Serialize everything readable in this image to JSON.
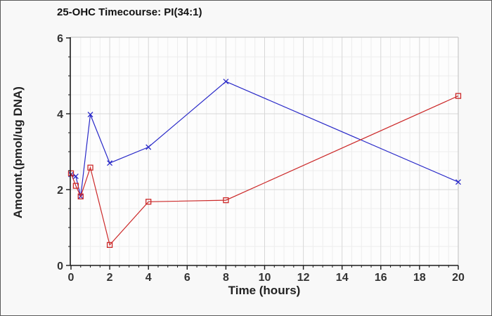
{
  "window": {
    "background": "#f8f8f8",
    "border_color": "#5a5a5a",
    "plot_background": "#fdfdfd"
  },
  "chart_data": {
    "type": "line",
    "title": "25-OHC Timecourse: PI(34:1)",
    "xlabel": "Time (hours)",
    "ylabel": "Amount.(pmol/ug DNA)",
    "xlim": [
      0,
      20.4
    ],
    "ylim": [
      0,
      6
    ],
    "x_ticks": [
      0,
      2,
      4,
      6,
      8,
      10,
      12,
      14,
      16,
      18,
      20
    ],
    "y_ticks": [
      0,
      2,
      4,
      6
    ],
    "grid": true,
    "minor_grid_step_x": 0.5,
    "minor_grid_step_y": 0.5,
    "legend_position": "none",
    "series": [
      {
        "name": "blue-series",
        "color": "#2828c8",
        "marker": "x",
        "x": [
          0,
          0.25,
          0.5,
          1,
          2,
          4,
          8,
          20
        ],
        "y": [
          2.4,
          2.35,
          1.82,
          3.98,
          2.7,
          3.12,
          4.85,
          2.2
        ]
      },
      {
        "name": "red-series",
        "color": "#cc2929",
        "marker": "open-square",
        "x": [
          0,
          0.25,
          0.5,
          1,
          2,
          4,
          8,
          20
        ],
        "y": [
          2.43,
          2.1,
          1.82,
          2.58,
          0.54,
          1.68,
          1.72,
          4.47
        ]
      }
    ],
    "colors": {
      "major_grid": "#d7d7d7",
      "minor_grid": "#ededed",
      "axis_spine": "#1a1a1a",
      "plot_frame": "#c8c8c8",
      "tick_label": "#333333"
    }
  }
}
